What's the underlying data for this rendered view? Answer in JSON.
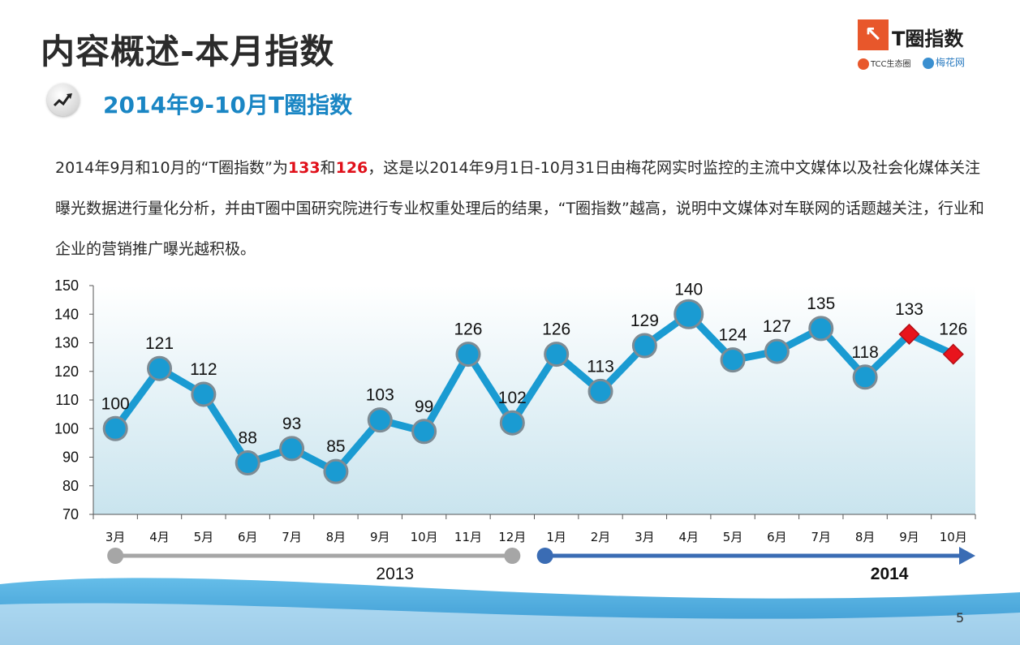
{
  "page": {
    "title": "内容概述-本月指数",
    "section_title": "2014年9-10月T圈指数",
    "page_number": "5"
  },
  "logo": {
    "mark": "↖",
    "name": "T圈指数",
    "tcc": "TCC生态圈",
    "meihua": "梅花网",
    "brand_color": "#e8572b"
  },
  "summary": {
    "before": "2014年9月和10月的“T圈指数”为",
    "value_sep": "133",
    "and": "和",
    "value_oct": "126",
    "after": "，这是以2014年9月1日-10月31日由梅花网实时监控的主流中文媒体以及社会化媒体关注曝光数据进行量化分析，并由T圈中国研究院进行专业权重处理后的结果，“T圈指数”越高，说明中文媒体对车联网的话题越关注，行业和企业的营销推广曝光越积极。"
  },
  "chart_data": {
    "type": "line",
    "categories": [
      "3月",
      "4月",
      "5月",
      "6月",
      "7月",
      "8月",
      "9月",
      "10月",
      "11月",
      "12月",
      "1月",
      "2月",
      "3月",
      "4月",
      "5月",
      "6月",
      "7月",
      "8月",
      "9月",
      "10月"
    ],
    "values": [
      100,
      121,
      112,
      88,
      93,
      85,
      103,
      99,
      126,
      102,
      126,
      113,
      129,
      140,
      124,
      127,
      135,
      118,
      133,
      126
    ],
    "highlight_indices": [
      18,
      19
    ],
    "ylim": [
      70,
      150
    ],
    "yticks": [
      70,
      80,
      90,
      100,
      110,
      120,
      130,
      140,
      150
    ],
    "year_labels": [
      {
        "label": "2013",
        "from": 0,
        "to": 9
      },
      {
        "label": "2014",
        "from": 10,
        "to": 19
      }
    ],
    "colors": {
      "line": "#1a9bd2",
      "marker": "#1a9bd2",
      "marker_border": "#7d8b94",
      "highlight": "#e8141c",
      "timeline_2013": "#a6a6a6",
      "timeline_2014": "#3a6cb4"
    }
  }
}
